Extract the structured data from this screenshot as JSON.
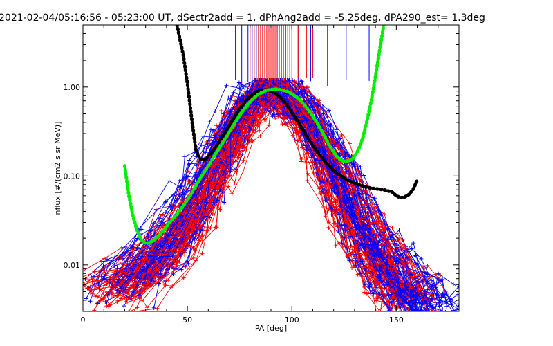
{
  "chart_data": {
    "type": "line",
    "title": "2021-02-04/05:16:56 - 05:23:00 UT, dSectr2add = 1, dPhAng2add = -5.25deg, dPA290_est=   1.3deg",
    "xlabel": "PA [deg]",
    "ylabel": "nflux [#/(cm2 s sr MeV)]",
    "xlim": [
      0,
      180
    ],
    "ylim": [
      0.003,
      5
    ],
    "yscale": "log",
    "xticks": [
      0,
      50,
      100,
      150
    ],
    "xtick_labels": [
      "0",
      "50",
      "100",
      "150"
    ],
    "yticks": [
      0.01,
      0.1,
      1.0
    ],
    "ytick_labels": [
      "0.01",
      "0.10",
      "1.00"
    ],
    "grid": false,
    "legend": "none",
    "colors": {
      "red_traces": "#ff0000",
      "blue_traces": "#0000ff",
      "black_fit": "#000000",
      "green_fit": "#00ee00"
    },
    "vertical_markers": {
      "red_x": [
        80,
        82,
        84,
        85,
        86,
        87,
        88,
        89,
        90,
        91,
        92,
        93,
        94,
        95,
        96,
        98,
        100,
        103,
        107,
        110,
        114,
        117
      ],
      "blue_x": [
        73,
        76,
        79,
        81,
        83,
        86,
        88,
        91,
        93,
        95,
        97,
        99,
        103,
        109,
        126,
        137
      ]
    },
    "series_black_fit": {
      "x": [
        45,
        48,
        50,
        52,
        54,
        56,
        58,
        60,
        62,
        64,
        66,
        68,
        70,
        72,
        74,
        76,
        78,
        80,
        82,
        84,
        86,
        88,
        90,
        92,
        94,
        96,
        98,
        100,
        102,
        104,
        106,
        108,
        110,
        112,
        114,
        116,
        118,
        120,
        122,
        124,
        126,
        128,
        130,
        132,
        134,
        136,
        138,
        140,
        142,
        144,
        146,
        148,
        150,
        152,
        154,
        156,
        158,
        160
      ],
      "y": [
        5,
        2.3,
        1.1,
        0.45,
        0.2,
        0.155,
        0.152,
        0.165,
        0.19,
        0.22,
        0.26,
        0.31,
        0.37,
        0.44,
        0.52,
        0.61,
        0.7,
        0.78,
        0.85,
        0.9,
        0.93,
        0.93,
        0.9,
        0.85,
        0.78,
        0.7,
        0.61,
        0.52,
        0.44,
        0.37,
        0.31,
        0.26,
        0.22,
        0.19,
        0.165,
        0.145,
        0.13,
        0.115,
        0.105,
        0.098,
        0.092,
        0.087,
        0.083,
        0.08,
        0.077,
        0.075,
        0.073,
        0.072,
        0.071,
        0.07,
        0.068,
        0.066,
        0.06,
        0.057,
        0.058,
        0.062,
        0.07,
        0.09
      ]
    },
    "series_green_fit": {
      "x": [
        20,
        22,
        24,
        26,
        28,
        30,
        32,
        34,
        36,
        38,
        40,
        42,
        44,
        46,
        48,
        50,
        52,
        54,
        56,
        58,
        60,
        62,
        64,
        66,
        68,
        70,
        72,
        74,
        76,
        78,
        80,
        82,
        84,
        86,
        88,
        90,
        92,
        94,
        96,
        98,
        100,
        102,
        104,
        106,
        108,
        110,
        112,
        114,
        116,
        118,
        120,
        122,
        124,
        126,
        128,
        130,
        132,
        134,
        136,
        138,
        140,
        142,
        144
      ],
      "y": [
        0.13,
        0.06,
        0.035,
        0.024,
        0.019,
        0.0175,
        0.0178,
        0.019,
        0.021,
        0.0235,
        0.027,
        0.031,
        0.035,
        0.04,
        0.046,
        0.054,
        0.064,
        0.077,
        0.093,
        0.11,
        0.13,
        0.155,
        0.185,
        0.22,
        0.26,
        0.31,
        0.37,
        0.44,
        0.52,
        0.6,
        0.68,
        0.76,
        0.83,
        0.88,
        0.92,
        0.94,
        0.95,
        0.94,
        0.92,
        0.89,
        0.84,
        0.78,
        0.71,
        0.63,
        0.55,
        0.47,
        0.4,
        0.33,
        0.27,
        0.22,
        0.185,
        0.16,
        0.148,
        0.146,
        0.15,
        0.165,
        0.2,
        0.27,
        0.42,
        0.7,
        1.3,
        2.6,
        5
      ]
    },
    "red_trace_template": {
      "x": [
        12,
        20,
        28,
        35,
        42,
        48,
        52,
        56,
        60,
        64,
        68,
        72,
        76,
        80,
        84,
        88,
        92,
        96,
        100,
        104,
        108,
        112,
        116,
        120,
        124,
        128,
        132,
        136,
        140,
        144,
        148,
        152,
        156
      ],
      "y": [
        0.005,
        0.006,
        0.008,
        0.011,
        0.016,
        0.024,
        0.033,
        0.048,
        0.075,
        0.11,
        0.17,
        0.26,
        0.4,
        0.58,
        0.75,
        0.86,
        0.88,
        0.82,
        0.7,
        0.54,
        0.38,
        0.25,
        0.16,
        0.1,
        0.062,
        0.04,
        0.026,
        0.017,
        0.012,
        0.0085,
        0.0065,
        0.005,
        0.004
      ]
    },
    "blue_trace_template": {
      "x": [
        18,
        24,
        30,
        36,
        42,
        48,
        54,
        58,
        62,
        66,
        70,
        74,
        78,
        82,
        86,
        90,
        94,
        98,
        102,
        106,
        110,
        114,
        118,
        122,
        126,
        130,
        134,
        138,
        142,
        146,
        150,
        154,
        158,
        162,
        166
      ],
      "y": [
        0.006,
        0.0075,
        0.01,
        0.014,
        0.02,
        0.032,
        0.055,
        0.085,
        0.13,
        0.2,
        0.3,
        0.45,
        0.62,
        0.78,
        0.88,
        0.9,
        0.86,
        0.76,
        0.62,
        0.47,
        0.33,
        0.22,
        0.14,
        0.085,
        0.052,
        0.033,
        0.022,
        0.015,
        0.011,
        0.008,
        0.0062,
        0.005,
        0.0042,
        0.0038,
        0.0035
      ]
    }
  }
}
